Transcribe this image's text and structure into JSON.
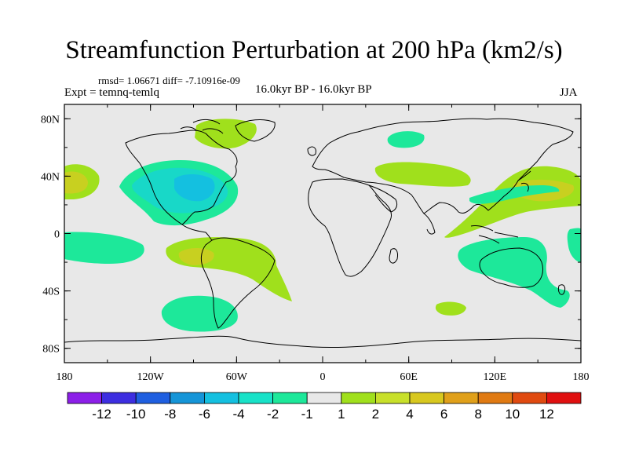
{
  "title": "Streamfunction Perturbation at 200 hPa (km2/s)",
  "stats_line": "rmsd= 1.06671 diff= -7.10916e-09",
  "expt_line": "Expt = temnq-temlq",
  "period_line": "16.0kyr BP - 16.0kyr BP",
  "season": "JJA",
  "axes": {
    "lat_ticks": [
      "80N",
      "40N",
      "0",
      "40S",
      "80S"
    ],
    "lon_ticks": [
      "180",
      "120W",
      "60W",
      "0",
      "60E",
      "120E",
      "180"
    ]
  },
  "colorbar": {
    "colors": [
      "#8c1fe8",
      "#3d2ee0",
      "#1f5fe0",
      "#1595d8",
      "#14c0e0",
      "#18e2c8",
      "#1de89a",
      "#e8e8e8",
      "#a0e01c",
      "#c8e02a",
      "#d8c81f",
      "#e0a01a",
      "#e07a12",
      "#e04a10",
      "#e01010"
    ],
    "labels": [
      "-12",
      "-10",
      "-8",
      "-6",
      "-4",
      "-2",
      "-1",
      "1",
      "2",
      "4",
      "6",
      "8",
      "10",
      "12"
    ]
  },
  "map_fills": {
    "background": "#e8e8e8",
    "pos_low": "#a0e01c",
    "pos_mid": "#c8d020",
    "neg_low": "#1de89a",
    "neg_mid": "#18d8c8",
    "neg_high": "#14c0e0"
  }
}
